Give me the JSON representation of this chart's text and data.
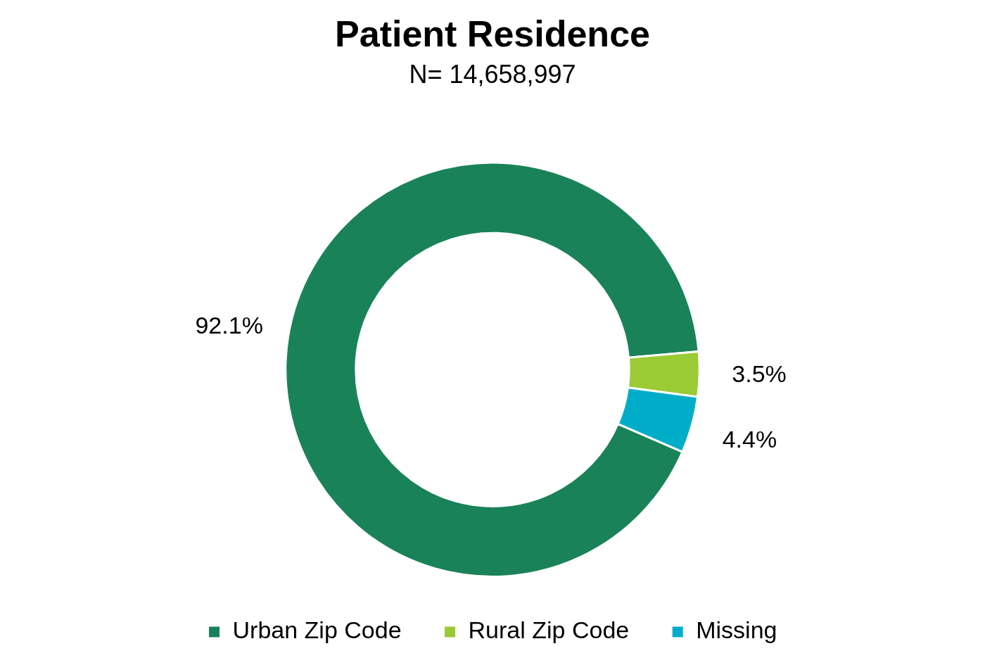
{
  "chart_data": {
    "type": "donut",
    "title": "Patient Residence",
    "subtitle": "N= 14,658,997",
    "categories": [
      "Urban Zip Code",
      "Rural Zip Code",
      "Missing"
    ],
    "values": [
      92.1,
      3.5,
      4.4
    ],
    "colors": [
      "#1a8259",
      "#9acb34",
      "#00adc9"
    ],
    "value_labels": [
      "92.1%",
      "3.5%",
      "4.4%"
    ],
    "legend": "bottom"
  }
}
